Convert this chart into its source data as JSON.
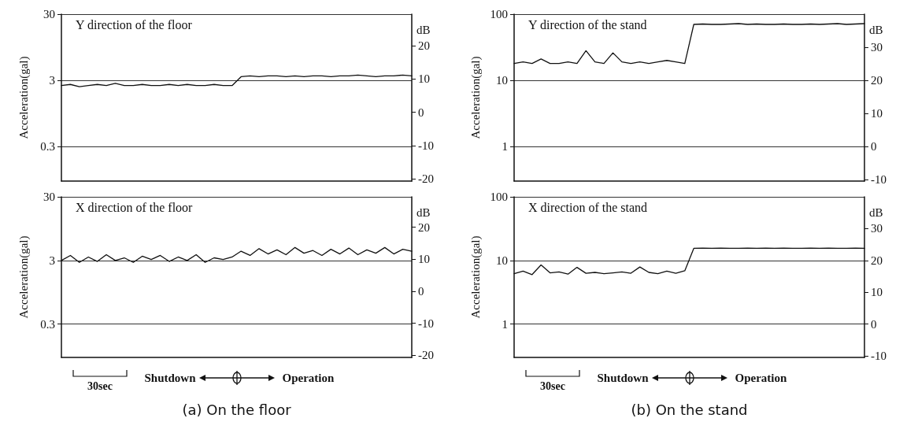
{
  "chart_data": [
    {
      "type": "line",
      "title": "Y direction of the floor",
      "ylabel": "Acceleration(gal)",
      "y2label": "dB",
      "log": "y",
      "grid": "y",
      "tick_labels": "y",
      "marker": "none",
      "line_style": "solid",
      "categories": [
        null,
        null,
        null,
        null,
        null,
        null,
        null,
        null,
        null,
        null,
        null,
        null,
        null,
        null,
        null,
        null,
        null,
        null,
        null,
        null,
        null,
        null,
        null,
        null,
        null,
        null,
        null,
        null,
        null,
        null,
        null,
        null,
        null,
        null,
        null,
        null,
        null,
        null,
        null,
        null
      ],
      "series": [
        {
          "color": "#111111",
          "values": [
            2.5,
            2.6,
            2.4,
            2.5,
            2.6,
            2.5,
            2.7,
            2.5,
            2.5,
            2.6,
            2.5,
            2.5,
            2.6,
            2.5,
            2.6,
            2.5,
            2.5,
            2.6,
            2.5,
            2.5,
            3.4,
            3.5,
            3.4,
            3.5,
            3.5,
            3.4,
            3.5,
            3.4,
            3.5,
            3.5,
            3.4,
            3.5,
            3.5,
            3.6,
            3.5,
            3.4,
            3.5,
            3.5,
            3.6,
            3.5
          ]
        }
      ],
      "ylim": [
        0.09,
        30
      ],
      "yticks": [
        0.3,
        3,
        30
      ],
      "y2lim": [
        -20.7,
        29.5
      ],
      "y2ticks": [
        -20,
        -10,
        0,
        10,
        20
      ]
    },
    {
      "type": "line",
      "title": "Y direction of the stand",
      "ylabel": "Acceleration(gal)",
      "y2label": "dB",
      "log": "y",
      "grid": "y",
      "tick_labels": "y",
      "marker": "none",
      "line_style": "solid",
      "categories": [
        null,
        null,
        null,
        null,
        null,
        null,
        null,
        null,
        null,
        null,
        null,
        null,
        null,
        null,
        null,
        null,
        null,
        null,
        null,
        null,
        null,
        null,
        null,
        null,
        null,
        null,
        null,
        null,
        null,
        null,
        null,
        null,
        null,
        null,
        null,
        null,
        null,
        null,
        null,
        null
      ],
      "series": [
        {
          "color": "#111111",
          "values": [
            18,
            19,
            18,
            21,
            18,
            18,
            19,
            18,
            28,
            19,
            18,
            26,
            19,
            18,
            19,
            18,
            19,
            20,
            19,
            18,
            70,
            71,
            70,
            70,
            71,
            72,
            70,
            71,
            70,
            70,
            71,
            70,
            70,
            71,
            70,
            71,
            72,
            70,
            71,
            72
          ]
        }
      ],
      "ylim": [
        0.3,
        100
      ],
      "yticks": [
        1,
        10,
        100
      ],
      "y2lim": [
        -10.5,
        40
      ],
      "y2ticks": [
        -10,
        0,
        10,
        20,
        30
      ]
    },
    {
      "type": "line",
      "title": "X direction of the floor",
      "ylabel": "Acceleration(gal)",
      "y2label": "dB",
      "log": "y",
      "grid": "y",
      "tick_labels": "y",
      "marker": "none",
      "line_style": "solid",
      "categories": [
        null,
        null,
        null,
        null,
        null,
        null,
        null,
        null,
        null,
        null,
        null,
        null,
        null,
        null,
        null,
        null,
        null,
        null,
        null,
        null,
        null,
        null,
        null,
        null,
        null,
        null,
        null,
        null,
        null,
        null,
        null,
        null,
        null,
        null,
        null,
        null,
        null,
        null,
        null,
        null
      ],
      "series": [
        {
          "color": "#111111",
          "values": [
            3.0,
            3.6,
            2.8,
            3.4,
            2.9,
            3.7,
            3.0,
            3.3,
            2.8,
            3.5,
            3.1,
            3.6,
            2.9,
            3.4,
            3.0,
            3.7,
            2.8,
            3.3,
            3.1,
            3.4,
            4.2,
            3.6,
            4.6,
            3.8,
            4.4,
            3.7,
            4.8,
            3.9,
            4.3,
            3.6,
            4.5,
            3.8,
            4.7,
            3.7,
            4.4,
            3.9,
            4.8,
            3.8,
            4.5,
            4.2
          ]
        }
      ],
      "ylim": [
        0.09,
        30
      ],
      "yticks": [
        0.3,
        3,
        30
      ],
      "y2lim": [
        -20.7,
        29.5
      ],
      "y2ticks": [
        -20,
        -10,
        0,
        10,
        20
      ],
      "annotations": [
        "30sec",
        "Shutdown",
        "Operation",
        "(a) On the floor"
      ]
    },
    {
      "type": "line",
      "title": "X direction of the stand",
      "ylabel": "Acceleration(gal)",
      "y2label": "dB",
      "log": "y",
      "grid": "y",
      "tick_labels": "y",
      "marker": "none",
      "line_style": "solid",
      "categories": [
        null,
        null,
        null,
        null,
        null,
        null,
        null,
        null,
        null,
        null,
        null,
        null,
        null,
        null,
        null,
        null,
        null,
        null,
        null,
        null,
        null,
        null,
        null,
        null,
        null,
        null,
        null,
        null,
        null,
        null,
        null,
        null,
        null,
        null,
        null,
        null,
        null,
        null,
        null,
        null
      ],
      "series": [
        {
          "color": "#111111",
          "values": [
            6.2,
            6.8,
            6.0,
            8.5,
            6.4,
            6.6,
            6.1,
            7.8,
            6.3,
            6.5,
            6.2,
            6.4,
            6.6,
            6.3,
            7.9,
            6.5,
            6.2,
            6.8,
            6.3,
            6.9,
            15.5,
            15.6,
            15.5,
            15.6,
            15.5,
            15.5,
            15.6,
            15.5,
            15.6,
            15.5,
            15.6,
            15.5,
            15.5,
            15.6,
            15.5,
            15.6,
            15.5,
            15.5,
            15.6,
            15.5
          ]
        }
      ],
      "ylim": [
        0.3,
        100
      ],
      "yticks": [
        1,
        10,
        100
      ],
      "y2lim": [
        -10.5,
        40
      ],
      "y2ticks": [
        -10,
        0,
        10,
        20,
        30
      ],
      "annotations": [
        "30sec",
        "Shutdown",
        "Operation",
        "(b) On the stand"
      ]
    }
  ]
}
